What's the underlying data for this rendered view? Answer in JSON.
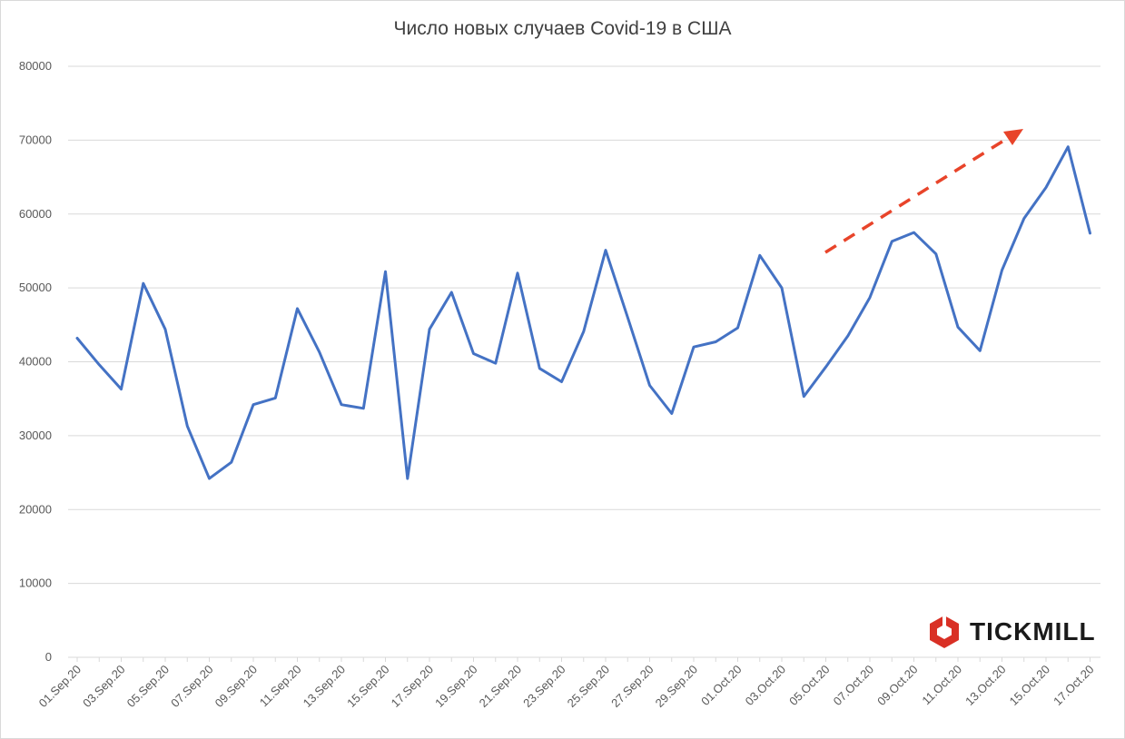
{
  "chart_data": {
    "type": "line",
    "title": "Число новых случаев Covid-19 в США",
    "xlabel": "",
    "ylabel": "",
    "ylim": [
      0,
      80000
    ],
    "yticks": [
      "0",
      "10000",
      "20000",
      "30000",
      "40000",
      "50000",
      "60000",
      "70000",
      "80000"
    ],
    "grid": "horizontal",
    "x": [
      "01.Sep.20",
      "02.Sep.20",
      "03.Sep.20",
      "04.Sep.20",
      "05.Sep.20",
      "06.Sep.20",
      "07.Sep.20",
      "08.Sep.20",
      "09.Sep.20",
      "10.Sep.20",
      "11.Sep.20",
      "12.Sep.20",
      "13.Sep.20",
      "14.Sep.20",
      "15.Sep.20",
      "16.Sep.20",
      "17.Sep.20",
      "18.Sep.20",
      "19.Sep.20",
      "20.Sep.20",
      "21.Sep.20",
      "22.Sep.20",
      "23.Sep.20",
      "24.Sep.20",
      "25.Sep.20",
      "26.Sep.20",
      "27.Sep.20",
      "28.Sep.20",
      "29.Sep.20",
      "30.Sep.20",
      "01.Oct.20",
      "02.Oct.20",
      "03.Oct.20",
      "04.Oct.20",
      "05.Oct.20",
      "06.Oct.20",
      "07.Oct.20",
      "08.Oct.20",
      "09.Oct.20",
      "10.Oct.20",
      "11.Oct.20",
      "12.Oct.20",
      "13.Oct.20",
      "14.Oct.20",
      "15.Oct.20",
      "16.Oct.20",
      "17.Oct.20"
    ],
    "xtick_labels": [
      "01.Sep.20",
      "03.Sep.20",
      "05.Sep.20",
      "07.Sep.20",
      "09.Sep.20",
      "11.Sep.20",
      "13.Sep.20",
      "15.Sep.20",
      "17.Sep.20",
      "19.Sep.20",
      "21.Sep.20",
      "23.Sep.20",
      "25.Sep.20",
      "27.Sep.20",
      "29.Sep.20",
      "01.Oct.20",
      "03.Oct.20",
      "05.Oct.20",
      "07.Oct.20",
      "09.Oct.20",
      "11.Oct.20",
      "13.Oct.20",
      "15.Oct.20",
      "17.Oct.20"
    ],
    "series": [
      {
        "values": [
          43200,
          39600,
          36300,
          50600,
          44400,
          31300,
          24200,
          26400,
          34200,
          35100,
          47200,
          41300,
          34200,
          33700,
          52200,
          24200,
          44400,
          49400,
          41100,
          39800,
          52000,
          39100,
          37300,
          44100,
          55100,
          46000,
          36800,
          33000,
          42000,
          42700,
          44600,
          54400,
          50000,
          35300,
          39300,
          43500,
          48700,
          56300,
          57500,
          54600,
          44700,
          41500,
          52400,
          59400,
          63600,
          69100,
          57400
        ],
        "color": "#4472c4"
      }
    ],
    "annotation": {
      "type": "dashed-arrow",
      "direction": "up-right",
      "color": "#e8442a"
    }
  },
  "logo": {
    "text": "TICKMILL",
    "color": "#d93025"
  }
}
